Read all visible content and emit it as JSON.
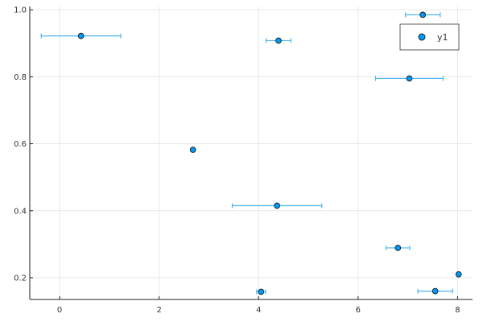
{
  "colors": {
    "series": "#009AFA",
    "errorbar": "#4DB6F2",
    "marker_stroke": "#1a1a1a",
    "axis": "#222222",
    "grid": "#e9e9e9",
    "legend_border": "#333333"
  },
  "chart_data": {
    "type": "scatter",
    "title": "",
    "xlabel": "",
    "ylabel": "",
    "xlim": [
      -0.6,
      8.3
    ],
    "ylim": [
      0.135,
      1.01
    ],
    "xticks": [
      0,
      2,
      4,
      6,
      8
    ],
    "yticks": [
      0.2,
      0.4,
      0.6,
      0.8,
      1.0
    ],
    "xtick_labels": [
      "0",
      "2",
      "4",
      "6",
      "8"
    ],
    "ytick_labels": [
      "0.2",
      "0.4",
      "0.6",
      "0.8",
      "1.0"
    ],
    "grid": true,
    "legend_position": "top-right",
    "series": [
      {
        "name": "y1",
        "marker": "circle",
        "points": [
          {
            "x": 0.43,
            "y": 0.922,
            "xerr": 0.8
          },
          {
            "x": 2.68,
            "y": 0.582,
            "xerr": 0.0
          },
          {
            "x": 4.05,
            "y": 0.158,
            "xerr": 0.09
          },
          {
            "x": 4.37,
            "y": 0.415,
            "xerr": 0.9
          },
          {
            "x": 4.4,
            "y": 0.908,
            "xerr": 0.25
          },
          {
            "x": 6.8,
            "y": 0.289,
            "xerr": 0.24
          },
          {
            "x": 7.03,
            "y": 0.795,
            "xerr": 0.68
          },
          {
            "x": 7.3,
            "y": 0.985,
            "xerr": 0.35
          },
          {
            "x": 7.55,
            "y": 0.16,
            "xerr": 0.35
          },
          {
            "x": 8.02,
            "y": 0.21,
            "xerr": 0.0
          }
        ]
      }
    ]
  }
}
